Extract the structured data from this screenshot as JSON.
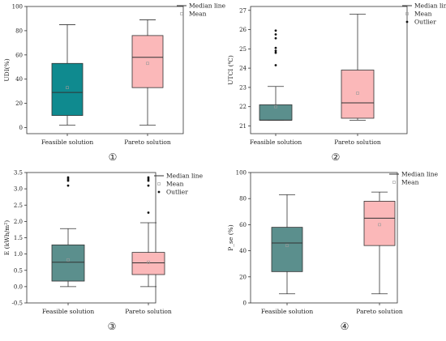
{
  "chart_data": [
    {
      "type": "box",
      "panel_label": "①",
      "ylabel": "UDI(%)",
      "ylim": [
        -5,
        100
      ],
      "yticks": [
        0,
        20,
        40,
        60,
        80,
        100
      ],
      "categories": [
        "Feasible solution",
        "Pareto solution"
      ],
      "legend": [
        "Median line",
        "Mean"
      ],
      "legend_position": "top-right",
      "boxes": [
        {
          "whisker_low": 2,
          "q1": 10,
          "median": 29,
          "q3": 53,
          "whisker_high": 85,
          "mean": 33,
          "outliers": [],
          "color": "#0f8a8f"
        },
        {
          "whisker_low": 2,
          "q1": 33,
          "median": 58,
          "q3": 76,
          "whisker_high": 89,
          "mean": 53,
          "outliers": [],
          "color": "#fbb8b9"
        }
      ]
    },
    {
      "type": "box",
      "panel_label": "②",
      "ylabel": "UTCI (℃)",
      "ylim": [
        20.6,
        27.2
      ],
      "yticks": [
        21,
        22,
        23,
        24,
        25,
        26,
        27
      ],
      "categories": [
        "Feasible solution",
        "Pareto solution"
      ],
      "legend": [
        "Median line",
        "Mean",
        "Outlier"
      ],
      "legend_position": "top-right",
      "boxes": [
        {
          "whisker_low": 21.3,
          "q1": 21.3,
          "median": 21.3,
          "q3": 22.1,
          "whisker_high": 23.05,
          "mean": 22.0,
          "outliers": [
            24.15,
            24.8,
            24.9,
            25.05,
            25.55,
            25.75,
            25.95
          ],
          "color": "#5b8f8d"
        },
        {
          "whisker_low": 21.3,
          "q1": 21.4,
          "median": 22.2,
          "q3": 23.9,
          "whisker_high": 26.8,
          "mean": 22.7,
          "outliers": [],
          "color": "#fbb8b9"
        }
      ]
    },
    {
      "type": "box",
      "panel_label": "③",
      "ylabel": "E (kWh/m²)",
      "ylim": [
        -0.5,
        3.5
      ],
      "yticks": [
        -0.5,
        0.0,
        0.5,
        1.0,
        1.5,
        2.0,
        2.5,
        3.0,
        3.5
      ],
      "categories": [
        "Feasible solution",
        "Pareto solution"
      ],
      "legend": [
        "Median line",
        "Mean",
        "Outlier"
      ],
      "legend_position": "top-right",
      "boxes": [
        {
          "whisker_low": 0.0,
          "q1": 0.17,
          "median": 0.75,
          "q3": 1.28,
          "whisker_high": 1.78,
          "mean": 0.82,
          "outliers": [
            3.1,
            3.25,
            3.3,
            3.35
          ],
          "color": "#5b8f8d"
        },
        {
          "whisker_low": 0.0,
          "q1": 0.37,
          "median": 0.73,
          "q3": 1.05,
          "whisker_high": 1.96,
          "mean": 0.75,
          "outliers": [
            2.27,
            3.1,
            3.25,
            3.3,
            3.35
          ],
          "color": "#fbb8b9"
        }
      ]
    },
    {
      "type": "box",
      "panel_label": "④",
      "ylabel": "P_se (%)",
      "ylim": [
        0,
        100
      ],
      "yticks": [
        0,
        20,
        40,
        60,
        80,
        100
      ],
      "categories": [
        "Feasible solution",
        "Pareto solution"
      ],
      "legend": [
        "Median line",
        "Mean"
      ],
      "legend_position": "top-right",
      "boxes": [
        {
          "whisker_low": 7,
          "q1": 24,
          "median": 46,
          "q3": 58,
          "whisker_high": 83,
          "mean": 44,
          "outliers": [],
          "color": "#5b8f8d"
        },
        {
          "whisker_low": 7,
          "q1": 44,
          "median": 65,
          "q3": 78,
          "whisker_high": 85,
          "mean": 60,
          "outliers": [],
          "color": "#fbb8b9"
        }
      ]
    }
  ]
}
